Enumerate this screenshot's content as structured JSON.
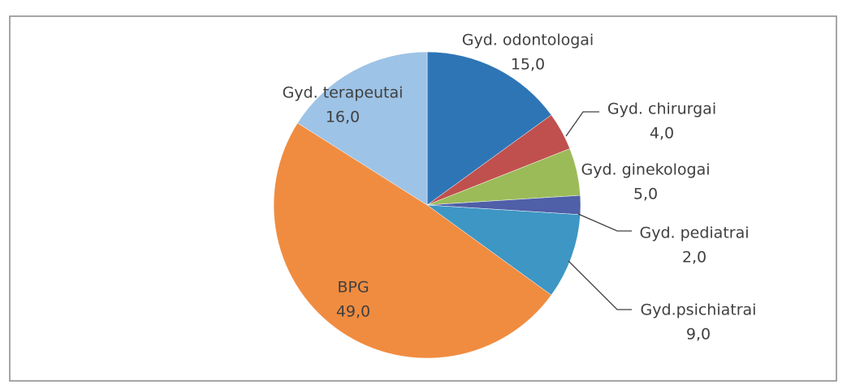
{
  "chart_data": {
    "type": "pie",
    "categories": [
      "Gyd. odontologai",
      "Gyd. chirurgai",
      "Gyd. ginekologai",
      "Gyd. pediatrai",
      "Gyd.psichiatrai",
      "BPG",
      "Gyd. terapeutai"
    ],
    "values": [
      15,
      4,
      5,
      2,
      9,
      49,
      16
    ],
    "value_labels": [
      "15,0",
      "4,0",
      "5,0",
      "2,0",
      "9,0",
      "49,0",
      "16,0"
    ],
    "colors": [
      "#2e75b6",
      "#c0504d",
      "#9bbb59",
      "#4f5fa8",
      "#3d96c4",
      "#f08c40",
      "#9dc3e6"
    ]
  }
}
